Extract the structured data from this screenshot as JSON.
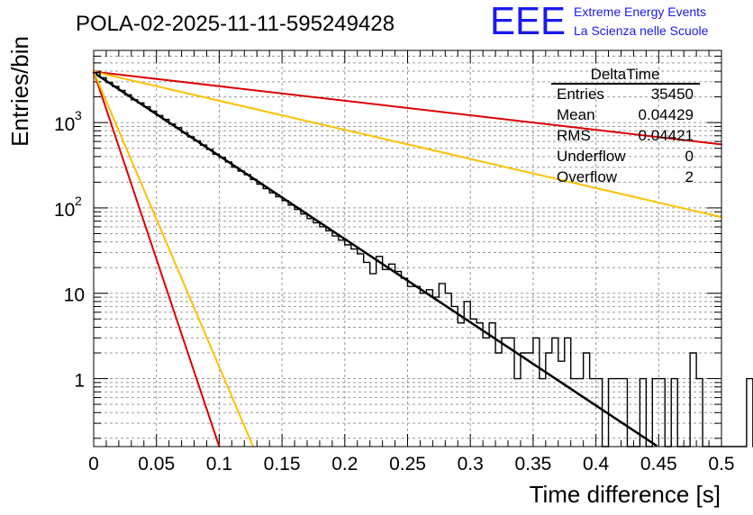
{
  "chart_data": {
    "type": "histogram",
    "title": "POLA-02-2025-11-11-595249428",
    "xlabel": "Time difference [s]",
    "ylabel": "Entries/bin",
    "xlim": [
      0,
      0.5
    ],
    "ylim": [
      0.16,
      7000
    ],
    "yscale": "log",
    "grid": true,
    "x_tick_labels": [
      "0",
      "0.05",
      "0.1",
      "0.15",
      "0.2",
      "0.25",
      "0.3",
      "0.35",
      "0.4",
      "0.45",
      "0.5"
    ],
    "y_ticks": [
      {
        "value": 1,
        "base": "1",
        "exp": ""
      },
      {
        "value": 10,
        "base": "10",
        "exp": ""
      },
      {
        "value": 100,
        "base": "10",
        "exp": "2"
      },
      {
        "value": 1000,
        "base": "10",
        "exp": "3"
      }
    ],
    "histogram": {
      "name": "DeltaTime",
      "bin_width": 0.005,
      "counts": [
        3850,
        3350,
        2950,
        2650,
        2380,
        2110,
        1850,
        1700,
        1530,
        1360,
        1210,
        1090,
        960,
        870,
        760,
        680,
        610,
        545,
        485,
        425,
        390,
        345,
        300,
        270,
        245,
        215,
        190,
        168,
        150,
        135,
        122,
        108,
        96,
        85,
        75,
        67,
        60,
        54,
        47,
        42,
        37,
        33,
        29,
        23,
        17,
        27,
        19,
        22,
        18,
        15,
        12,
        12,
        10,
        11,
        9,
        13,
        10,
        7,
        4.5,
        8,
        5,
        4.5,
        3,
        4.5,
        2,
        3,
        3,
        1,
        2,
        2,
        3,
        1,
        2,
        3,
        1.6,
        3,
        1,
        1,
        2,
        1,
        1,
        0,
        1,
        1,
        1,
        0.01,
        0.01,
        1,
        0.01,
        1,
        1,
        0.01,
        1,
        0.01,
        0.01,
        2,
        1,
        0.01,
        0.01,
        0.01,
        0.01,
        0.01,
        0.01,
        0.01,
        1,
        0.01,
        0.01,
        0.01,
        0.01,
        0.01,
        0.01,
        0.01
      ]
    },
    "fit_lines": [
      {
        "name": "fit",
        "color": "#000000",
        "y0": 3850,
        "y_end": 0.165,
        "x_end": 0.448
      },
      {
        "name": "red-slow",
        "color": "#dd0000",
        "y0": 3950,
        "y_end": 555,
        "x_end": 0.5
      },
      {
        "name": "orange-slow",
        "color": "#ffc000",
        "y0": 3950,
        "y_end": 78,
        "x_end": 0.5
      },
      {
        "name": "red-fast",
        "color": "#dd0000",
        "y0": 3950,
        "y_end": 0.16,
        "x_end": 0.1
      },
      {
        "name": "orange-fast",
        "color": "#ffc000",
        "y0": 3950,
        "y_end": 0.16,
        "x_end": 0.127
      }
    ],
    "stats": {
      "title": "DeltaTime",
      "rows": [
        {
          "label": "Entries",
          "value": "35450"
        },
        {
          "label": "Mean",
          "value": "0.04429"
        },
        {
          "label": "RMS",
          "value": "0.04421"
        },
        {
          "label": "Underflow",
          "value": "0"
        },
        {
          "label": "Overflow",
          "value": "2"
        }
      ]
    }
  },
  "logo": {
    "text": "EEE",
    "line1": "Extreme Energy Events",
    "line2": "La Scienza nelle Scuole",
    "color": "#1a1aee"
  }
}
